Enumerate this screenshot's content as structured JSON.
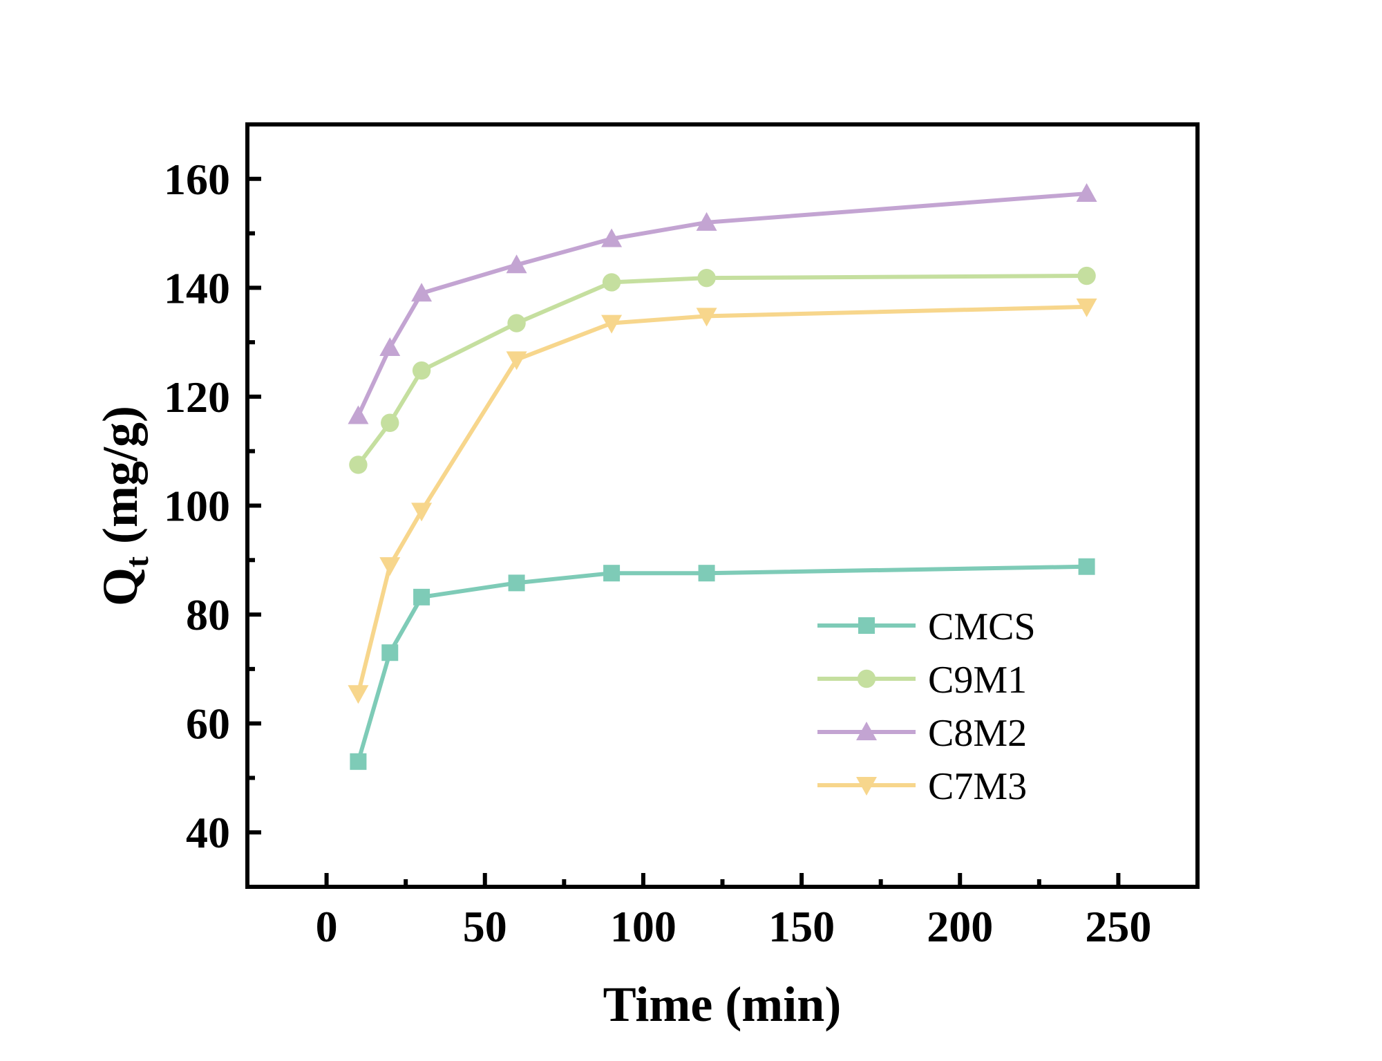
{
  "chart_data": {
    "type": "line",
    "title": "",
    "xlabel": "Time (min)",
    "ylabel": {
      "main": "Q",
      "subscript": "t",
      "unit": " (mg/g)"
    },
    "xlim": [
      -25,
      275
    ],
    "ylim": [
      30,
      170
    ],
    "xticks": [
      0,
      50,
      100,
      150,
      200,
      250
    ],
    "xtick_labels": [
      "0",
      "50",
      "100",
      "150",
      "200",
      "250"
    ],
    "yticks": [
      40,
      60,
      80,
      100,
      120,
      140,
      160
    ],
    "ytick_labels": [
      "40",
      "60",
      "80",
      "100",
      "120",
      "140",
      "160"
    ],
    "x": [
      10,
      20,
      30,
      60,
      90,
      120,
      240
    ],
    "legend_position": "bottom-right",
    "grid": false,
    "series": [
      {
        "name": "CMCS",
        "marker": "square",
        "color": "#7ecbb7",
        "values": [
          53,
          73,
          83.2,
          85.8,
          87.6,
          87.6,
          88.8
        ]
      },
      {
        "name": "C9M1",
        "marker": "circle",
        "color": "#c5df9f",
        "values": [
          107.5,
          115.2,
          124.8,
          133.5,
          141,
          141.8,
          142.2
        ]
      },
      {
        "name": "C8M2",
        "marker": "triangle-up",
        "color": "#c3a4d2",
        "values": [
          116.5,
          129,
          139,
          144.2,
          149,
          152,
          157.3
        ]
      },
      {
        "name": "C7M3",
        "marker": "triangle-down",
        "color": "#f7d68c",
        "values": [
          65.5,
          89,
          99,
          126.8,
          133.5,
          134.8,
          136.5
        ]
      }
    ]
  }
}
